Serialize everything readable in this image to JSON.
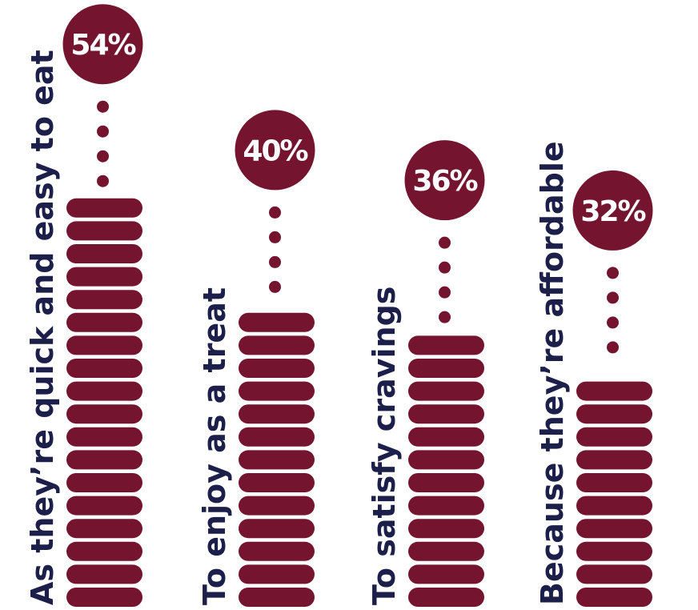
{
  "chart_data": {
    "type": "bar",
    "categories": [
      "As they’re quick and easy to eat",
      "To enjoy as a treat",
      "To satisfy cravings",
      "Because they’re affordable"
    ],
    "values": [
      54,
      40,
      36,
      32
    ],
    "value_labels": [
      "54%",
      "40%",
      "36%",
      "32%"
    ],
    "color": "#74142f"
  }
}
